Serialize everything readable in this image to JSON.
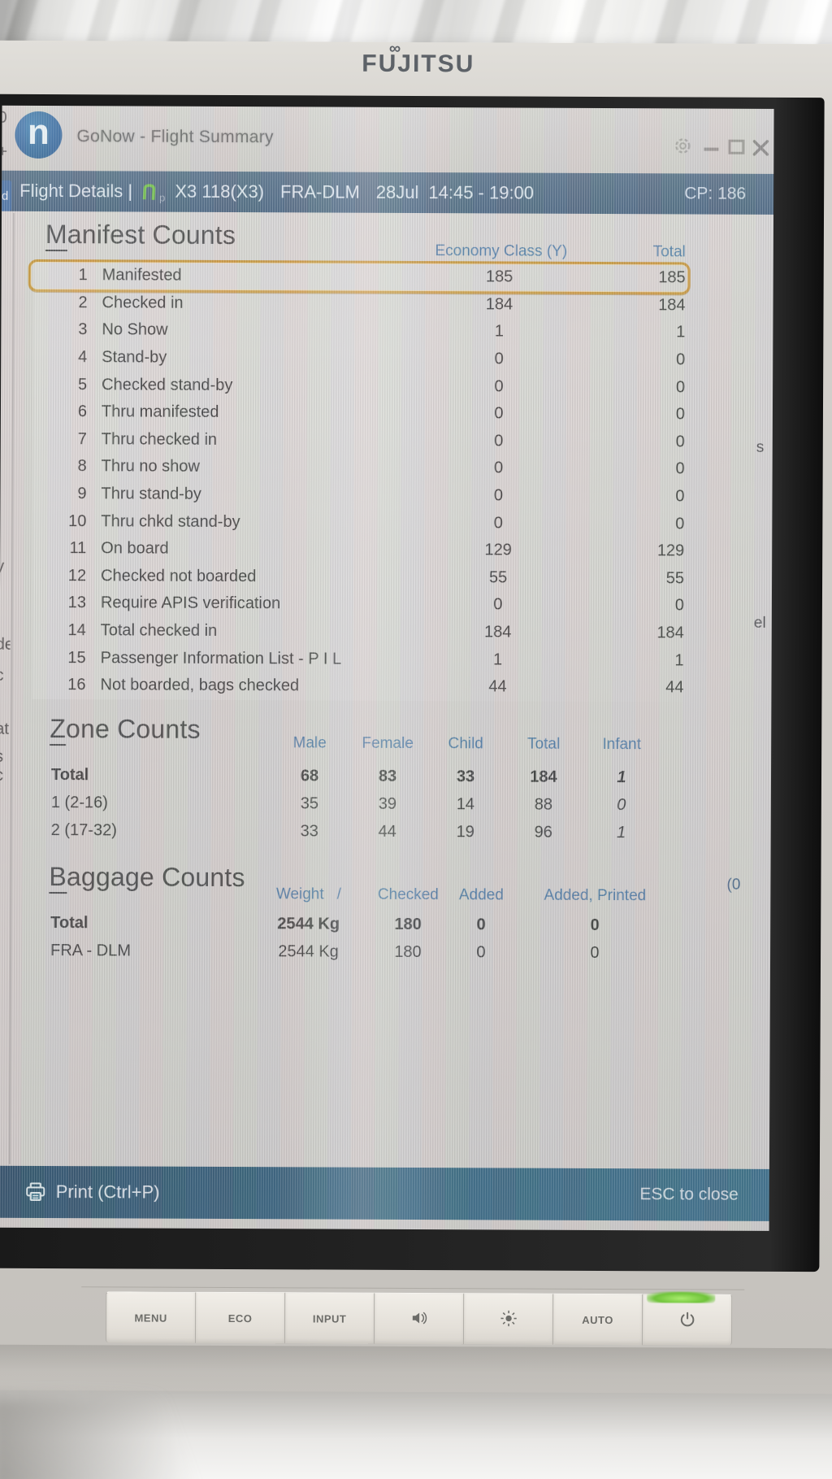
{
  "monitor": {
    "brand": "FUJITSU",
    "buttons": [
      {
        "id": "menu",
        "label": "MENU"
      },
      {
        "id": "eco",
        "label": "ECO"
      },
      {
        "id": "input",
        "label": "INPUT"
      },
      {
        "id": "volume",
        "icon": "speaker-icon"
      },
      {
        "id": "brightness",
        "icon": "sun-icon"
      },
      {
        "id": "auto",
        "label": "AUTO"
      },
      {
        "id": "power",
        "icon": "power-icon",
        "led": true
      }
    ]
  },
  "titlebar": {
    "app_initial": "n",
    "title": "GoNow - Flight Summary",
    "window_controls": [
      "settings",
      "minimize",
      "maximize",
      "close"
    ]
  },
  "flight_bar": {
    "prefix": "Flight Details |",
    "icon_suffix": "p",
    "flight": "X3 118(X3)",
    "route": "FRA-DLM",
    "date": "28Jul",
    "time": "14:45 - 19:00",
    "cp": "CP: 186"
  },
  "manifest": {
    "title": "Manifest Counts",
    "col_economy": "Economy Class (Y)",
    "col_total": "Total",
    "rows": [
      {
        "num": 1,
        "label": "Manifested",
        "economy": "185",
        "total": "185",
        "selected": true
      },
      {
        "num": 2,
        "label": "Checked in",
        "economy": "184",
        "total": "184"
      },
      {
        "num": 3,
        "label": "No Show",
        "economy": "1",
        "total": "1"
      },
      {
        "num": 4,
        "label": "Stand-by",
        "economy": "0",
        "total": "0"
      },
      {
        "num": 5,
        "label": "Checked stand-by",
        "economy": "0",
        "total": "0"
      },
      {
        "num": 6,
        "label": "Thru manifested",
        "economy": "0",
        "total": "0"
      },
      {
        "num": 7,
        "label": "Thru checked in",
        "economy": "0",
        "total": "0"
      },
      {
        "num": 8,
        "label": "Thru no show",
        "economy": "0",
        "total": "0"
      },
      {
        "num": 9,
        "label": "Thru stand-by",
        "economy": "0",
        "total": "0"
      },
      {
        "num": 10,
        "label": "Thru chkd stand-by",
        "economy": "0",
        "total": "0"
      },
      {
        "num": 11,
        "label": "On board",
        "economy": "129",
        "total": "129"
      },
      {
        "num": 12,
        "label": "Checked not boarded",
        "economy": "55",
        "total": "55"
      },
      {
        "num": 13,
        "label": "Require APIS verification",
        "economy": "0",
        "total": "0"
      },
      {
        "num": 14,
        "label": "Total checked in",
        "economy": "184",
        "total": "184"
      },
      {
        "num": 15,
        "label": "Passenger Information List - P I L",
        "economy": "1",
        "total": "1"
      },
      {
        "num": 16,
        "label": "Not boarded, bags checked",
        "economy": "44",
        "total": "44"
      }
    ]
  },
  "zone": {
    "title": "Zone Counts",
    "columns": [
      "Male",
      "Female",
      "Child",
      "Total",
      "Infant"
    ],
    "rows": [
      {
        "label": "Total",
        "bold": true,
        "values": [
          "68",
          "83",
          "33",
          "184",
          "1"
        ]
      },
      {
        "label": "1 (2-16)",
        "bold": false,
        "values": [
          "35",
          "39",
          "14",
          "88",
          "0"
        ]
      },
      {
        "label": "2 (17-32)",
        "bold": false,
        "values": [
          "33",
          "44",
          "19",
          "96",
          "1"
        ]
      }
    ]
  },
  "baggage": {
    "title": "Baggage Counts",
    "columns": [
      "Weight",
      "/",
      "Checked",
      "Added",
      "Added, Printed"
    ],
    "rows": [
      {
        "label": "Total",
        "bold": true,
        "values": [
          "2544 Kg",
          "180",
          "0",
          "0"
        ]
      },
      {
        "label": "FRA - DLM",
        "bold": false,
        "values": [
          "2544 Kg",
          "180",
          "0",
          "0"
        ]
      }
    ]
  },
  "footer": {
    "print_label": "Print (Ctrl+P)",
    "esc_label": "ESC to close"
  },
  "edge_fragments": {
    "left": [
      "0",
      "+",
      "d",
      "y",
      "de",
      "c",
      "at",
      "s c"
    ],
    "right": [
      "s",
      "el",
      "(0"
    ]
  },
  "colors": {
    "app_logo_blue": "#2e6ba3",
    "flight_bar_blue": "#44607c",
    "column_header_blue": "#4a7aa6",
    "selection_gold": "#c99330",
    "footer_teal": "#31637e",
    "led_green": "#76c83e",
    "logo_green": "#66c23c"
  }
}
